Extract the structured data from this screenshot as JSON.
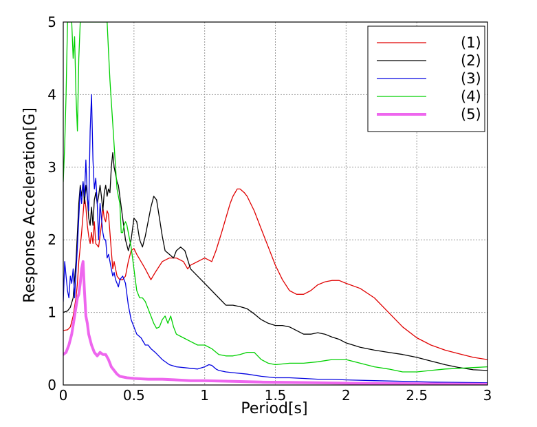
{
  "chart_data": {
    "type": "line",
    "title": "",
    "xlabel": "Period[s]",
    "ylabel": "Response Acceleration[G]",
    "xlim": [
      0,
      3
    ],
    "ylim": [
      0,
      5
    ],
    "xticks": [
      "0",
      "0.5",
      "1",
      "1.5",
      "2",
      "2.5",
      "3"
    ],
    "yticks": [
      "0",
      "1",
      "2",
      "3",
      "4",
      "5"
    ],
    "grid": true,
    "legend_position": "top-right",
    "series": [
      {
        "name": "(1)",
        "color": "#e00000",
        "line_width": 1.3,
        "x": [
          0,
          0.03,
          0.05,
          0.07,
          0.09,
          0.1,
          0.11,
          0.12,
          0.13,
          0.14,
          0.15,
          0.16,
          0.17,
          0.18,
          0.19,
          0.2,
          0.21,
          0.22,
          0.23,
          0.25,
          0.27,
          0.28,
          0.29,
          0.3,
          0.31,
          0.32,
          0.33,
          0.34,
          0.35,
          0.36,
          0.37,
          0.38,
          0.4,
          0.42,
          0.44,
          0.46,
          0.48,
          0.5,
          0.52,
          0.55,
          0.58,
          0.62,
          0.65,
          0.7,
          0.75,
          0.8,
          0.85,
          0.88,
          0.9,
          0.95,
          1.0,
          1.05,
          1.08,
          1.12,
          1.15,
          1.18,
          1.2,
          1.23,
          1.25,
          1.28,
          1.3,
          1.35,
          1.4,
          1.45,
          1.5,
          1.55,
          1.6,
          1.65,
          1.7,
          1.75,
          1.8,
          1.85,
          1.9,
          1.95,
          2.0,
          2.1,
          2.2,
          2.3,
          2.4,
          2.5,
          2.6,
          2.7,
          2.8,
          2.9,
          3.0
        ],
        "y": [
          0.75,
          0.76,
          0.8,
          0.95,
          1.2,
          1.4,
          1.7,
          1.9,
          2.1,
          2.35,
          2.6,
          2.45,
          2.2,
          2.05,
          1.95,
          2.1,
          1.95,
          2.25,
          1.95,
          1.9,
          2.2,
          2.45,
          2.3,
          2.25,
          2.4,
          2.35,
          2.1,
          1.85,
          1.6,
          1.7,
          1.6,
          1.5,
          1.45,
          1.45,
          1.5,
          1.7,
          1.85,
          1.88,
          1.8,
          1.7,
          1.6,
          1.45,
          1.55,
          1.7,
          1.75,
          1.75,
          1.7,
          1.6,
          1.65,
          1.7,
          1.75,
          1.7,
          1.85,
          2.1,
          2.3,
          2.5,
          2.6,
          2.7,
          2.7,
          2.65,
          2.6,
          2.4,
          2.15,
          1.9,
          1.65,
          1.45,
          1.3,
          1.25,
          1.25,
          1.3,
          1.38,
          1.42,
          1.44,
          1.44,
          1.4,
          1.33,
          1.2,
          1.0,
          0.8,
          0.65,
          0.55,
          0.48,
          0.43,
          0.38,
          0.35
        ]
      },
      {
        "name": "(2)",
        "color": "#000000",
        "line_width": 1.3,
        "x": [
          0,
          0.03,
          0.05,
          0.07,
          0.09,
          0.1,
          0.11,
          0.12,
          0.13,
          0.14,
          0.15,
          0.16,
          0.17,
          0.18,
          0.19,
          0.2,
          0.21,
          0.22,
          0.23,
          0.24,
          0.25,
          0.26,
          0.27,
          0.28,
          0.29,
          0.3,
          0.31,
          0.32,
          0.33,
          0.34,
          0.35,
          0.36,
          0.37,
          0.38,
          0.39,
          0.4,
          0.42,
          0.44,
          0.46,
          0.48,
          0.5,
          0.52,
          0.54,
          0.56,
          0.58,
          0.6,
          0.62,
          0.64,
          0.66,
          0.68,
          0.7,
          0.72,
          0.75,
          0.78,
          0.8,
          0.83,
          0.86,
          0.9,
          0.95,
          1.0,
          1.05,
          1.1,
          1.15,
          1.2,
          1.25,
          1.3,
          1.35,
          1.4,
          1.45,
          1.5,
          1.55,
          1.6,
          1.65,
          1.7,
          1.75,
          1.8,
          1.85,
          1.9,
          1.95,
          2.0,
          2.1,
          2.2,
          2.3,
          2.4,
          2.5,
          2.6,
          2.7,
          2.8,
          2.9,
          3.0
        ],
        "y": [
          1.0,
          1.02,
          1.07,
          1.2,
          1.7,
          2.1,
          2.5,
          2.75,
          2.6,
          2.8,
          2.5,
          2.75,
          2.6,
          2.3,
          2.2,
          2.45,
          2.2,
          2.55,
          2.65,
          2.5,
          2.6,
          2.75,
          2.6,
          2.4,
          2.65,
          2.75,
          2.6,
          2.7,
          2.65,
          3.0,
          3.2,
          3.0,
          2.9,
          2.8,
          2.75,
          2.6,
          2.3,
          2.0,
          1.85,
          2.0,
          2.3,
          2.25,
          2.0,
          1.9,
          2.05,
          2.25,
          2.45,
          2.6,
          2.55,
          2.3,
          2.05,
          1.85,
          1.8,
          1.75,
          1.85,
          1.9,
          1.85,
          1.6,
          1.5,
          1.4,
          1.3,
          1.2,
          1.1,
          1.1,
          1.08,
          1.05,
          0.98,
          0.9,
          0.85,
          0.82,
          0.82,
          0.8,
          0.75,
          0.7,
          0.7,
          0.72,
          0.7,
          0.66,
          0.63,
          0.58,
          0.52,
          0.48,
          0.45,
          0.42,
          0.38,
          0.33,
          0.28,
          0.24,
          0.21,
          0.2
        ]
      },
      {
        "name": "(3)",
        "color": "#0000e0",
        "line_width": 1.3,
        "x": [
          0,
          0.01,
          0.02,
          0.03,
          0.04,
          0.05,
          0.06,
          0.07,
          0.08,
          0.09,
          0.1,
          0.11,
          0.12,
          0.13,
          0.14,
          0.15,
          0.16,
          0.17,
          0.18,
          0.19,
          0.2,
          0.21,
          0.22,
          0.23,
          0.24,
          0.25,
          0.26,
          0.27,
          0.28,
          0.29,
          0.3,
          0.31,
          0.32,
          0.33,
          0.34,
          0.35,
          0.36,
          0.37,
          0.38,
          0.39,
          0.4,
          0.42,
          0.44,
          0.46,
          0.48,
          0.5,
          0.52,
          0.55,
          0.58,
          0.6,
          0.62,
          0.65,
          0.7,
          0.75,
          0.8,
          0.85,
          0.9,
          0.95,
          1.0,
          1.03,
          1.05,
          1.08,
          1.1,
          1.15,
          1.2,
          1.3,
          1.4,
          1.5,
          1.6,
          1.7,
          1.8,
          1.9,
          2.0,
          2.2,
          2.4,
          2.6,
          2.8,
          3.0
        ],
        "y": [
          1.15,
          1.7,
          1.5,
          1.3,
          1.2,
          1.5,
          1.4,
          1.6,
          1.2,
          1.55,
          1.9,
          2.3,
          2.7,
          2.5,
          2.8,
          2.6,
          3.1,
          2.6,
          2.4,
          3.5,
          4.0,
          3.1,
          2.7,
          2.85,
          2.5,
          2.0,
          2.5,
          2.3,
          2.1,
          2.0,
          2.0,
          1.75,
          1.8,
          1.7,
          1.6,
          1.5,
          1.55,
          1.45,
          1.4,
          1.35,
          1.45,
          1.5,
          1.4,
          1.1,
          0.9,
          0.8,
          0.7,
          0.65,
          0.55,
          0.55,
          0.5,
          0.45,
          0.35,
          0.28,
          0.25,
          0.24,
          0.23,
          0.22,
          0.25,
          0.28,
          0.27,
          0.22,
          0.2,
          0.18,
          0.17,
          0.15,
          0.12,
          0.1,
          0.1,
          0.09,
          0.08,
          0.08,
          0.07,
          0.06,
          0.05,
          0.04,
          0.035,
          0.03
        ]
      },
      {
        "name": "(4)",
        "color": "#00d000",
        "line_width": 1.3,
        "x": [
          0,
          0.01,
          0.02,
          0.03,
          0.04,
          0.05,
          0.06,
          0.07,
          0.08,
          0.09,
          0.1,
          0.11,
          0.12,
          0.13,
          0.14,
          0.15,
          0.16,
          0.17,
          0.18,
          0.19,
          0.2,
          0.21,
          0.22,
          0.23,
          0.24,
          0.25,
          0.26,
          0.27,
          0.28,
          0.29,
          0.3,
          0.31,
          0.32,
          0.33,
          0.34,
          0.35,
          0.36,
          0.37,
          0.38,
          0.39,
          0.4,
          0.41,
          0.42,
          0.43,
          0.44,
          0.45,
          0.46,
          0.48,
          0.5,
          0.52,
          0.54,
          0.56,
          0.58,
          0.6,
          0.62,
          0.64,
          0.66,
          0.68,
          0.7,
          0.72,
          0.74,
          0.76,
          0.78,
          0.8,
          0.85,
          0.9,
          0.95,
          1.0,
          1.05,
          1.1,
          1.15,
          1.2,
          1.25,
          1.3,
          1.35,
          1.4,
          1.45,
          1.5,
          1.6,
          1.7,
          1.8,
          1.9,
          2.0,
          2.1,
          2.2,
          2.3,
          2.4,
          2.5,
          2.6,
          2.7,
          2.8,
          2.9,
          3.0
        ],
        "y": [
          2.8,
          3.3,
          4.0,
          5.0,
          5.0,
          5.0,
          5.0,
          4.5,
          4.8,
          4.0,
          3.5,
          4.5,
          5.0,
          5.0,
          5.0,
          5.0,
          5.0,
          5.0,
          5.0,
          5.0,
          5.0,
          5.0,
          5.0,
          5.0,
          5.0,
          5.0,
          5.0,
          5.0,
          5.0,
          5.0,
          5.0,
          5.0,
          4.6,
          4.2,
          3.9,
          3.6,
          3.3,
          3.0,
          2.7,
          2.6,
          2.5,
          2.1,
          2.1,
          2.2,
          2.25,
          2.2,
          2.1,
          1.9,
          1.6,
          1.3,
          1.2,
          1.2,
          1.15,
          1.05,
          0.95,
          0.85,
          0.78,
          0.8,
          0.9,
          0.95,
          0.85,
          0.95,
          0.8,
          0.7,
          0.65,
          0.6,
          0.55,
          0.55,
          0.5,
          0.42,
          0.4,
          0.4,
          0.42,
          0.45,
          0.45,
          0.35,
          0.3,
          0.28,
          0.3,
          0.3,
          0.32,
          0.35,
          0.35,
          0.3,
          0.25,
          0.22,
          0.18,
          0.18,
          0.2,
          0.22,
          0.23,
          0.24,
          0.25
        ]
      },
      {
        "name": "(5)",
        "color": "#ee66ee",
        "line_width": 4,
        "x": [
          0,
          0.02,
          0.04,
          0.06,
          0.08,
          0.1,
          0.11,
          0.12,
          0.13,
          0.14,
          0.15,
          0.16,
          0.17,
          0.18,
          0.2,
          0.22,
          0.24,
          0.26,
          0.28,
          0.3,
          0.32,
          0.34,
          0.36,
          0.38,
          0.4,
          0.45,
          0.5,
          0.6,
          0.7,
          0.8,
          0.9,
          1.0,
          1.2,
          1.4,
          1.6,
          1.8,
          2.0,
          2.3,
          2.6,
          3.0
        ],
        "y": [
          0.42,
          0.45,
          0.55,
          0.7,
          0.95,
          1.2,
          1.25,
          1.4,
          1.6,
          1.7,
          1.3,
          0.95,
          0.85,
          0.7,
          0.55,
          0.45,
          0.4,
          0.45,
          0.42,
          0.42,
          0.35,
          0.25,
          0.2,
          0.15,
          0.12,
          0.1,
          0.09,
          0.08,
          0.08,
          0.07,
          0.06,
          0.06,
          0.05,
          0.04,
          0.035,
          0.03,
          0.025,
          0.02,
          0.015,
          0.01
        ]
      }
    ]
  }
}
